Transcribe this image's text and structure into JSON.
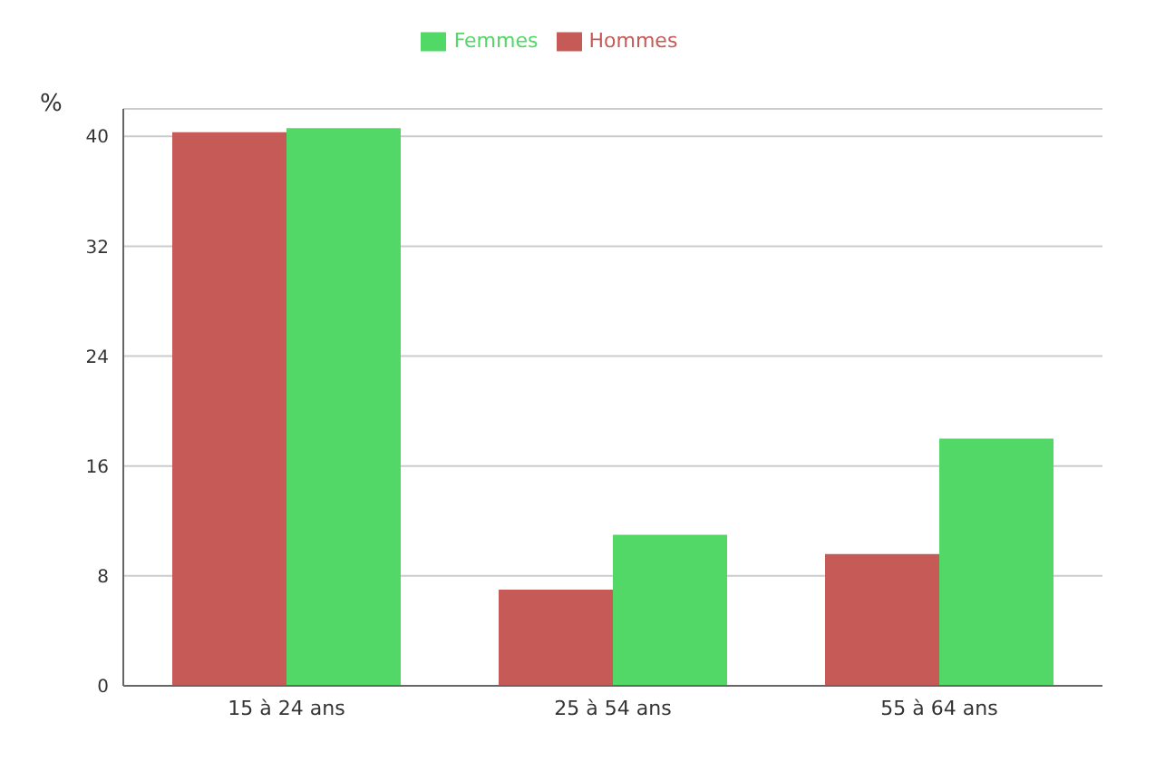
{
  "chart_data": {
    "type": "bar",
    "ylabel": "%",
    "categories": [
      "15 à 24 ans",
      "25 à 54 ans",
      "55 à 64 ans"
    ],
    "series": [
      {
        "name": "Hommes",
        "color": "#c65a56",
        "values": [
          40.3,
          7.0,
          9.6
        ]
      },
      {
        "name": "Femmes",
        "color": "#52d866",
        "values": [
          40.6,
          11.0,
          18.0
        ]
      }
    ],
    "ylim": [
      0,
      42
    ],
    "yticks": [
      0,
      8,
      16,
      24,
      32,
      40
    ],
    "grid": "y",
    "legend": "top"
  }
}
